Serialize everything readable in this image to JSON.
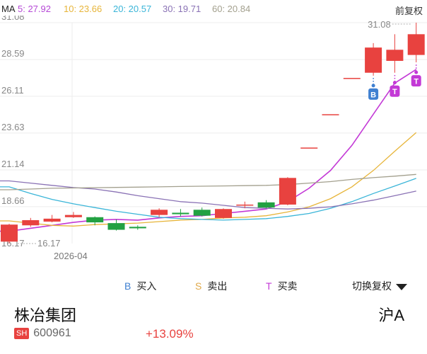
{
  "ma_bar": {
    "label": "MA",
    "items": [
      {
        "text": "5: 27.92",
        "color": "#b548d6"
      },
      {
        "text": "10: 23.66",
        "color": "#e7b53a"
      },
      {
        "text": "20: 20.57",
        "color": "#3ab5d8"
      },
      {
        "text": "30: 19.71",
        "color": "#8a72b5"
      },
      {
        "text": "60: 20.84",
        "color": "#a3a08e"
      }
    ],
    "adjust_label": "前复权"
  },
  "chart_data": {
    "type": "candlestick",
    "y_ticks": [
      "31.08",
      "28.59",
      "26.11",
      "23.63",
      "21.14",
      "18.66",
      "16.17"
    ],
    "y_values": [
      31.08,
      28.59,
      26.11,
      23.63,
      21.14,
      18.66,
      16.17
    ],
    "ylim": [
      16.17,
      31.08
    ],
    "max_label": "31.08",
    "min_label": "16.17",
    "date_label": "2026-04",
    "up_color": "#e8423f",
    "down_color": "#22a142",
    "candles": [
      {
        "o": 16.3,
        "c": 17.45,
        "h": 17.5,
        "l": 16.17
      },
      {
        "o": 17.4,
        "c": 17.75,
        "h": 17.9,
        "l": 17.3
      },
      {
        "o": 17.65,
        "c": 17.85,
        "h": 18.1,
        "l": 17.6
      },
      {
        "o": 17.95,
        "c": 18.1,
        "h": 18.3,
        "l": 17.9
      },
      {
        "o": 17.95,
        "c": 17.6,
        "h": 18.0,
        "l": 17.4
      },
      {
        "o": 17.55,
        "c": 17.1,
        "h": 17.8,
        "l": 17.05
      },
      {
        "o": 17.3,
        "c": 17.2,
        "h": 17.4,
        "l": 17.1
      },
      {
        "o": 18.1,
        "c": 18.45,
        "h": 18.55,
        "l": 17.95
      },
      {
        "o": 18.25,
        "c": 18.15,
        "h": 18.5,
        "l": 18.0
      },
      {
        "o": 18.45,
        "c": 18.05,
        "h": 18.6,
        "l": 18.0
      },
      {
        "o": 17.9,
        "c": 18.5,
        "h": 18.55,
        "l": 17.85
      },
      {
        "o": 18.75,
        "c": 18.8,
        "h": 19.0,
        "l": 18.55
      },
      {
        "o": 18.95,
        "c": 18.6,
        "h": 19.1,
        "l": 18.55
      },
      {
        "o": 18.8,
        "c": 20.6,
        "h": 20.65,
        "l": 18.75
      },
      {
        "o": 22.65,
        "c": 22.65,
        "h": 22.65,
        "l": 22.65
      },
      {
        "o": 24.9,
        "c": 24.9,
        "h": 24.9,
        "l": 24.9
      },
      {
        "o": 27.35,
        "c": 27.35,
        "h": 27.35,
        "l": 27.35
      },
      {
        "o": 27.7,
        "c": 29.4,
        "h": 29.7,
        "l": 27.5
      },
      {
        "o": 28.5,
        "c": 29.25,
        "h": 30.3,
        "l": 27.7
      },
      {
        "o": 28.9,
        "c": 30.3,
        "h": 31.08,
        "l": 28.4
      }
    ],
    "ma_lines": [
      {
        "name": "5",
        "color": "#c339d6",
        "values": [
          17.0,
          17.2,
          17.4,
          17.6,
          17.75,
          17.8,
          17.75,
          17.9,
          18.0,
          18.05,
          18.2,
          18.35,
          18.5,
          19.0,
          19.9,
          21.1,
          22.8,
          24.9,
          27.0,
          27.92
        ]
      },
      {
        "name": "10",
        "color": "#e7b53a",
        "values": [
          17.7,
          17.55,
          17.4,
          17.35,
          17.45,
          17.5,
          17.55,
          17.65,
          17.75,
          17.8,
          17.9,
          17.95,
          18.05,
          18.3,
          18.65,
          19.2,
          20.0,
          21.1,
          22.4,
          23.66
        ]
      },
      {
        "name": "20",
        "color": "#3ab5d8",
        "values": [
          20.0,
          19.55,
          19.15,
          18.85,
          18.6,
          18.35,
          18.15,
          17.95,
          17.85,
          17.8,
          17.75,
          17.8,
          17.85,
          18.0,
          18.2,
          18.55,
          19.0,
          19.55,
          20.05,
          20.57
        ]
      },
      {
        "name": "30",
        "color": "#8a72b5",
        "values": [
          20.4,
          20.25,
          20.1,
          19.95,
          19.85,
          19.65,
          19.4,
          19.2,
          19.0,
          18.9,
          18.75,
          18.6,
          18.55,
          18.5,
          18.55,
          18.65,
          18.85,
          19.1,
          19.4,
          19.71
        ]
      },
      {
        "name": "60",
        "color": "#a3a08e",
        "values": [
          19.8,
          19.85,
          19.9,
          19.92,
          19.94,
          19.96,
          19.98,
          20.0,
          20.02,
          20.04,
          20.06,
          20.08,
          20.1,
          20.15,
          20.25,
          20.35,
          20.5,
          20.62,
          20.72,
          20.84
        ]
      }
    ],
    "markers": [
      {
        "candle": 17,
        "letter": "B",
        "color": "#3f80d1"
      },
      {
        "candle": 18,
        "letter": "T",
        "color": "#c339d6"
      },
      {
        "candle": 19,
        "letter": "T",
        "color": "#c339d6"
      }
    ]
  },
  "legend": {
    "items": [
      {
        "letter": "B",
        "label": "买入",
        "color": "#3f80d1"
      },
      {
        "letter": "S",
        "label": "卖出",
        "color": "#e0a94a"
      },
      {
        "letter": "T",
        "label": "买卖",
        "color": "#c339d6"
      }
    ],
    "switch_label": "切换复权"
  },
  "stock": {
    "name": "株冶集团",
    "market": "沪A",
    "exchange_badge": "SH",
    "code": "600961",
    "change": "+13.09%"
  }
}
